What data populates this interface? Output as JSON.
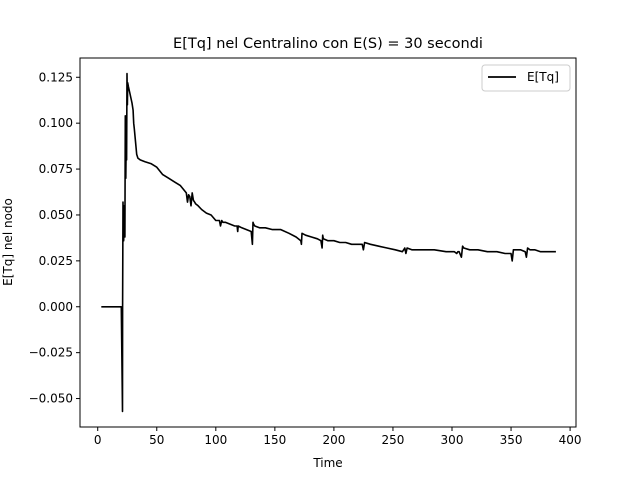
{
  "chart_data": {
    "type": "line",
    "title": "E[Tq] nel Centralino con E(S) = 30 secondi",
    "xlabel": "Time",
    "ylabel": "E[Tq] nel nodo",
    "xlim": [
      -15,
      405
    ],
    "ylim": [
      -0.0655,
      0.1355
    ],
    "x_ticks": [
      0,
      50,
      100,
      150,
      200,
      250,
      300,
      350,
      400
    ],
    "y_ticks": [
      -0.05,
      -0.025,
      0.0,
      0.025,
      0.05,
      0.075,
      0.1,
      0.125
    ],
    "x_tick_labels": [
      "0",
      "50",
      "100",
      "150",
      "200",
      "250",
      "300",
      "350",
      "400"
    ],
    "y_tick_labels": [
      "−0.050",
      "−0.025",
      "0.000",
      "0.025",
      "0.050",
      "0.075",
      "0.100",
      "0.125"
    ],
    "grid": false,
    "legend_position": "top-right",
    "series": [
      {
        "name": "E[Tq]",
        "color": "#000000",
        "x": [
          3,
          20,
          21,
          21.1,
          21.4,
          21.7,
          22,
          22.3,
          22.6,
          23,
          23.4,
          23.8,
          24.2,
          24.5,
          24.8,
          25.1,
          25.4,
          26,
          27,
          28,
          29,
          30,
          30.5,
          31,
          32,
          33,
          34,
          36,
          40,
          45,
          50,
          55,
          60,
          65,
          70,
          75,
          76,
          77,
          78,
          79,
          80,
          81,
          82,
          83,
          85,
          88,
          92,
          96,
          100,
          103,
          104,
          105,
          106,
          108,
          112,
          116,
          118,
          118.5,
          119,
          122,
          126,
          130,
          131,
          131.5,
          132,
          133,
          137,
          142,
          148,
          155,
          162,
          168,
          172,
          172.5,
          173,
          176,
          181,
          186,
          189,
          190,
          190.5,
          191,
          195,
          200,
          205,
          210,
          215,
          220,
          224,
          225,
          226,
          231,
          238,
          245,
          252,
          258,
          260,
          261,
          262,
          266,
          275,
          285,
          295,
          300,
          302,
          304,
          305,
          306,
          308,
          309,
          310,
          315,
          322,
          330,
          338,
          345,
          350,
          351,
          352,
          353,
          358,
          362,
          363,
          364,
          366,
          370,
          375,
          380,
          385,
          388
        ],
        "values": [
          0.0,
          0.0,
          -0.057,
          0.0,
          0.057,
          0.048,
          0.036,
          0.055,
          0.045,
          0.038,
          0.104,
          0.07,
          0.095,
          0.08,
          0.127,
          0.11,
          0.122,
          0.12,
          0.117,
          0.114,
          0.111,
          0.107,
          0.1,
          0.097,
          0.09,
          0.083,
          0.081,
          0.08,
          0.079,
          0.078,
          0.076,
          0.072,
          0.07,
          0.068,
          0.066,
          0.062,
          0.057,
          0.061,
          0.06,
          0.055,
          0.062,
          0.058,
          0.057,
          0.056,
          0.055,
          0.053,
          0.051,
          0.05,
          0.047,
          0.047,
          0.044,
          0.047,
          0.046,
          0.046,
          0.045,
          0.044,
          0.044,
          0.041,
          0.044,
          0.043,
          0.042,
          0.041,
          0.034,
          0.046,
          0.045,
          0.044,
          0.043,
          0.043,
          0.042,
          0.042,
          0.04,
          0.038,
          0.036,
          0.034,
          0.04,
          0.039,
          0.038,
          0.037,
          0.036,
          0.032,
          0.039,
          0.037,
          0.036,
          0.036,
          0.035,
          0.035,
          0.034,
          0.034,
          0.034,
          0.031,
          0.035,
          0.034,
          0.033,
          0.032,
          0.031,
          0.03,
          0.032,
          0.029,
          0.032,
          0.031,
          0.031,
          0.031,
          0.03,
          0.03,
          0.03,
          0.029,
          0.03,
          0.03,
          0.027,
          0.033,
          0.032,
          0.031,
          0.031,
          0.03,
          0.03,
          0.029,
          0.029,
          0.025,
          0.031,
          0.031,
          0.031,
          0.03,
          0.027,
          0.032,
          0.031,
          0.031,
          0.03,
          0.03,
          0.03,
          0.03
        ]
      }
    ]
  }
}
